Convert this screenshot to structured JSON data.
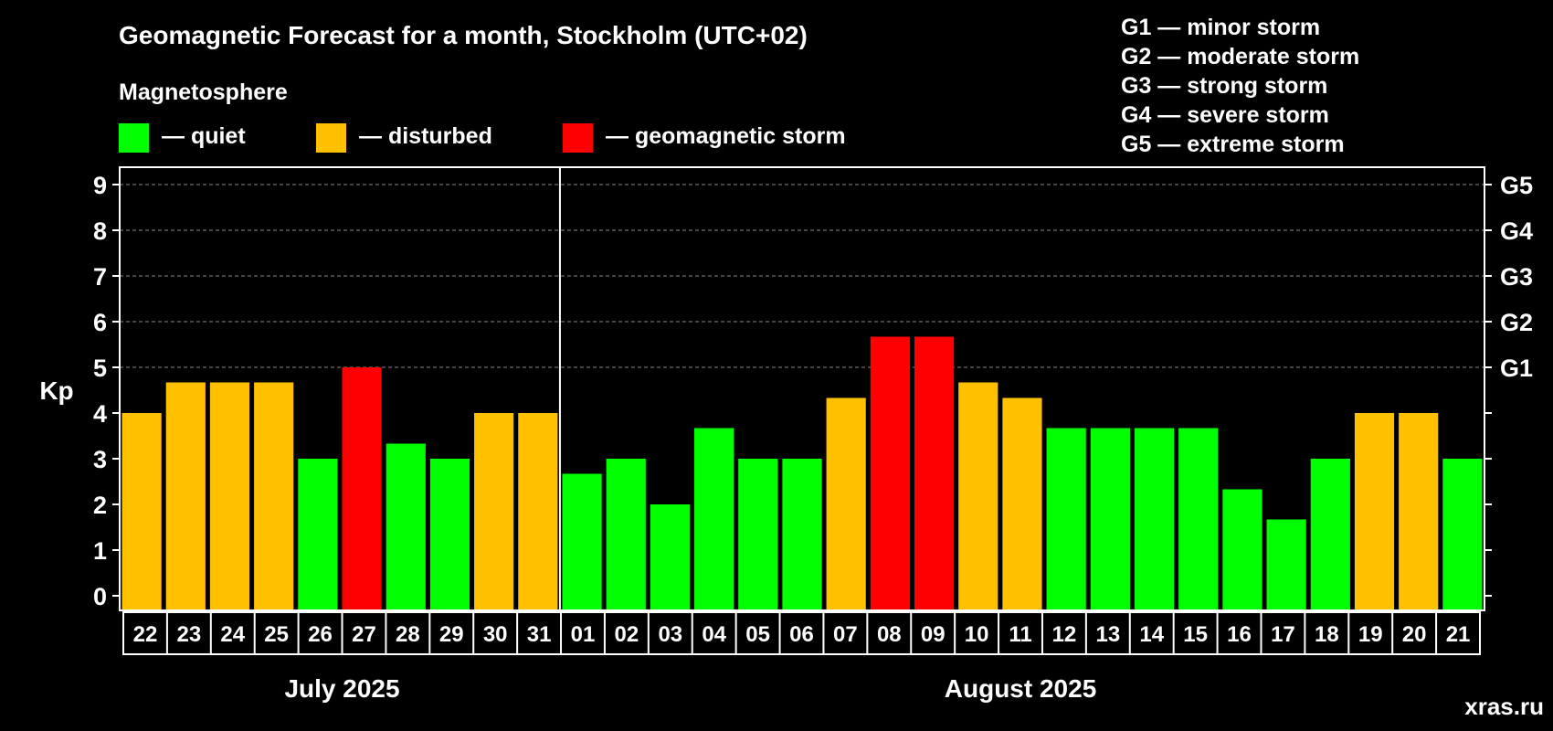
{
  "chart_data": {
    "type": "bar",
    "title": "Geomagnetic Forecast for a month, Stockholm (UTC+02)",
    "ylabel": "Kp",
    "ylim": [
      0,
      9
    ],
    "yticks": [
      "0",
      "1",
      "2",
      "3",
      "4",
      "5",
      "6",
      "7",
      "8",
      "9"
    ],
    "right_ticks": [
      {
        "kp": 5,
        "label": "G1"
      },
      {
        "kp": 6,
        "label": "G2"
      },
      {
        "kp": 7,
        "label": "G3"
      },
      {
        "kp": 8,
        "label": "G4"
      },
      {
        "kp": 9,
        "label": "G5"
      }
    ],
    "categories": [
      "22",
      "23",
      "24",
      "25",
      "26",
      "27",
      "28",
      "29",
      "30",
      "31",
      "01",
      "02",
      "03",
      "04",
      "05",
      "06",
      "07",
      "08",
      "09",
      "10",
      "11",
      "12",
      "13",
      "14",
      "15",
      "16",
      "17",
      "18",
      "19",
      "20",
      "21"
    ],
    "values": [
      4.0,
      4.67,
      4.67,
      4.67,
      3.0,
      5.0,
      3.33,
      3.0,
      4.0,
      4.0,
      2.67,
      3.0,
      2.0,
      3.67,
      3.0,
      3.0,
      4.33,
      5.67,
      5.67,
      4.67,
      4.33,
      3.67,
      3.67,
      3.67,
      3.67,
      2.33,
      1.67,
      3.0,
      4.0,
      4.0,
      3.0
    ],
    "status": [
      "disturbed",
      "disturbed",
      "disturbed",
      "disturbed",
      "quiet",
      "storm",
      "quiet",
      "quiet",
      "disturbed",
      "disturbed",
      "quiet",
      "quiet",
      "quiet",
      "quiet",
      "quiet",
      "quiet",
      "disturbed",
      "storm",
      "storm",
      "disturbed",
      "disturbed",
      "quiet",
      "quiet",
      "quiet",
      "quiet",
      "quiet",
      "quiet",
      "quiet",
      "disturbed",
      "disturbed",
      "quiet"
    ],
    "months": [
      {
        "label": "July 2025",
        "days": 10
      },
      {
        "label": "August 2025",
        "days": 21
      }
    ],
    "legend": {
      "heading": "Magnetosphere",
      "items": [
        {
          "key": "quiet",
          "label": "— quiet"
        },
        {
          "key": "disturbed",
          "label": "— disturbed"
        },
        {
          "key": "storm",
          "label": "— geomagnetic storm"
        }
      ]
    },
    "storm_scale": [
      "G1 — minor storm",
      "G2 — moderate storm",
      "G3 — strong storm",
      "G4 — severe storm",
      "G5 — extreme storm"
    ],
    "grid": true
  },
  "colors": {
    "quiet": "#00ff00",
    "disturbed": "#ffc000",
    "storm": "#ff0000",
    "background": "#000000",
    "foreground": "#ffffff",
    "watermark": "#7a7a7a"
  },
  "watermark": "xras.ru"
}
